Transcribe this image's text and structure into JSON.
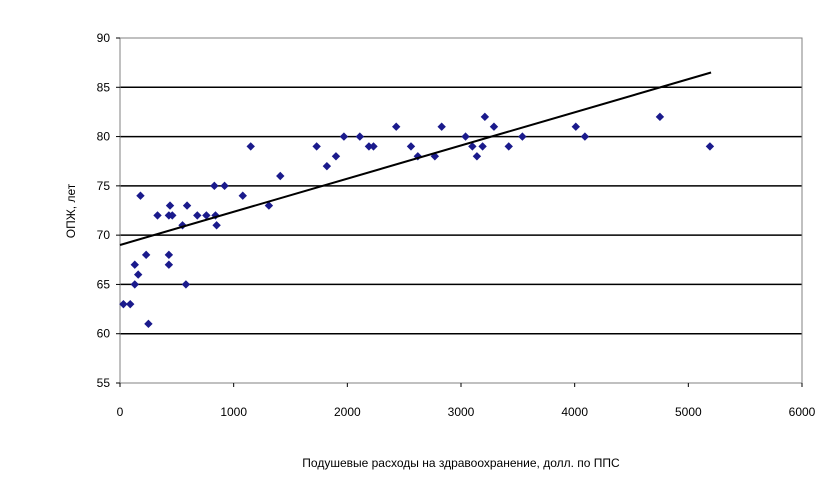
{
  "chart_data": {
    "type": "scatter",
    "title": "",
    "xlabel": "Подушевые расходы на здравоохранение,  долл. по ППС",
    "ylabel": "ОПЖ, лет",
    "xlim": [
      0,
      6000
    ],
    "ylim": [
      55,
      90
    ],
    "xticks": [
      0,
      1000,
      2000,
      3000,
      4000,
      5000,
      6000
    ],
    "yticks": [
      55,
      60,
      65,
      70,
      75,
      80,
      85,
      90
    ],
    "grid": "horizontal",
    "marker_color": "#1a1a8c",
    "trendline": {
      "x": [
        0,
        5200
      ],
      "y": [
        69,
        86.5
      ],
      "color": "#000000"
    },
    "points": [
      {
        "x": 30,
        "y": 63
      },
      {
        "x": 90,
        "y": 63
      },
      {
        "x": 130,
        "y": 65
      },
      {
        "x": 130,
        "y": 67
      },
      {
        "x": 160,
        "y": 66
      },
      {
        "x": 180,
        "y": 74
      },
      {
        "x": 230,
        "y": 68
      },
      {
        "x": 250,
        "y": 61
      },
      {
        "x": 330,
        "y": 72
      },
      {
        "x": 430,
        "y": 72
      },
      {
        "x": 440,
        "y": 73
      },
      {
        "x": 430,
        "y": 68
      },
      {
        "x": 430,
        "y": 67
      },
      {
        "x": 460,
        "y": 72
      },
      {
        "x": 550,
        "y": 71
      },
      {
        "x": 590,
        "y": 73
      },
      {
        "x": 580,
        "y": 65
      },
      {
        "x": 680,
        "y": 72
      },
      {
        "x": 760,
        "y": 72
      },
      {
        "x": 830,
        "y": 75
      },
      {
        "x": 840,
        "y": 72
      },
      {
        "x": 850,
        "y": 71
      },
      {
        "x": 920,
        "y": 75
      },
      {
        "x": 1080,
        "y": 74
      },
      {
        "x": 1150,
        "y": 79
      },
      {
        "x": 1310,
        "y": 73
      },
      {
        "x": 1410,
        "y": 76
      },
      {
        "x": 1730,
        "y": 79
      },
      {
        "x": 1820,
        "y": 77
      },
      {
        "x": 1900,
        "y": 78
      },
      {
        "x": 1970,
        "y": 80
      },
      {
        "x": 2110,
        "y": 80
      },
      {
        "x": 2190,
        "y": 79
      },
      {
        "x": 2230,
        "y": 79
      },
      {
        "x": 2430,
        "y": 81
      },
      {
        "x": 2560,
        "y": 79
      },
      {
        "x": 2620,
        "y": 78
      },
      {
        "x": 2770,
        "y": 78
      },
      {
        "x": 2830,
        "y": 81
      },
      {
        "x": 3040,
        "y": 80
      },
      {
        "x": 3100,
        "y": 79
      },
      {
        "x": 3140,
        "y": 78
      },
      {
        "x": 3190,
        "y": 79
      },
      {
        "x": 3210,
        "y": 82
      },
      {
        "x": 3290,
        "y": 81
      },
      {
        "x": 3420,
        "y": 79
      },
      {
        "x": 3540,
        "y": 80
      },
      {
        "x": 4010,
        "y": 81
      },
      {
        "x": 4090,
        "y": 80
      },
      {
        "x": 4750,
        "y": 82
      },
      {
        "x": 5190,
        "y": 79
      }
    ]
  }
}
